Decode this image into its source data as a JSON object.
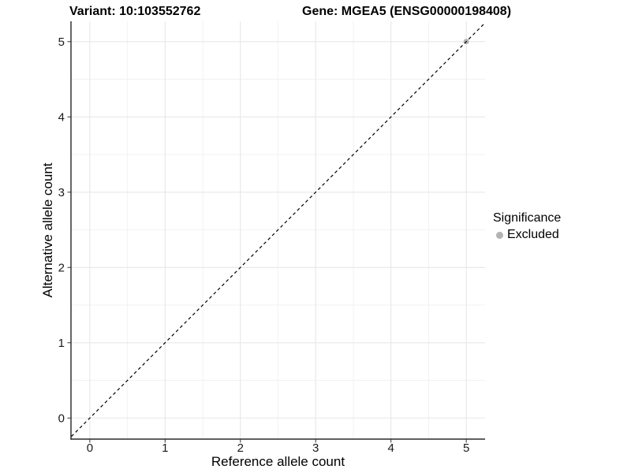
{
  "header": {
    "title_left": "Variant: 10:103552762",
    "title_right": "Gene: MGEA5 (ENSG00000198408)"
  },
  "chart_data": {
    "type": "scatter",
    "xlabel": "Reference allele count",
    "ylabel": "Alternative allele count",
    "xlim": [
      -0.25,
      5.25
    ],
    "ylim": [
      -0.28,
      5.27
    ],
    "x_ticks": [
      0,
      1,
      2,
      3,
      4,
      5
    ],
    "y_ticks": [
      0,
      1,
      2,
      3,
      4,
      5
    ],
    "x_minor_ticks": [
      0.5,
      1.5,
      2.5,
      3.5,
      4.5
    ],
    "y_minor_ticks": [
      0.5,
      1.5,
      2.5,
      3.5,
      4.5
    ],
    "grid": true,
    "identity_line": {
      "equation": "y = x",
      "style": "dashed",
      "color": "#000000",
      "from": -0.3,
      "to": 5.3
    },
    "series": [
      {
        "name": "Excluded",
        "color": "#b3b3b3",
        "points": [
          {
            "x": 5,
            "y": 5
          }
        ]
      }
    ],
    "legend": {
      "title": "Significance",
      "position": "right",
      "items": [
        {
          "label": "Excluded",
          "color": "#b3b3b3",
          "marker": "circle"
        }
      ]
    },
    "colors": {
      "background": "#ffffff",
      "grid_major": "#e7e7e7",
      "grid_minor": "#f2f2f2",
      "axis_line": "#000000",
      "tick_mark": "#333333",
      "tick_label": "#1a1a1a"
    }
  }
}
